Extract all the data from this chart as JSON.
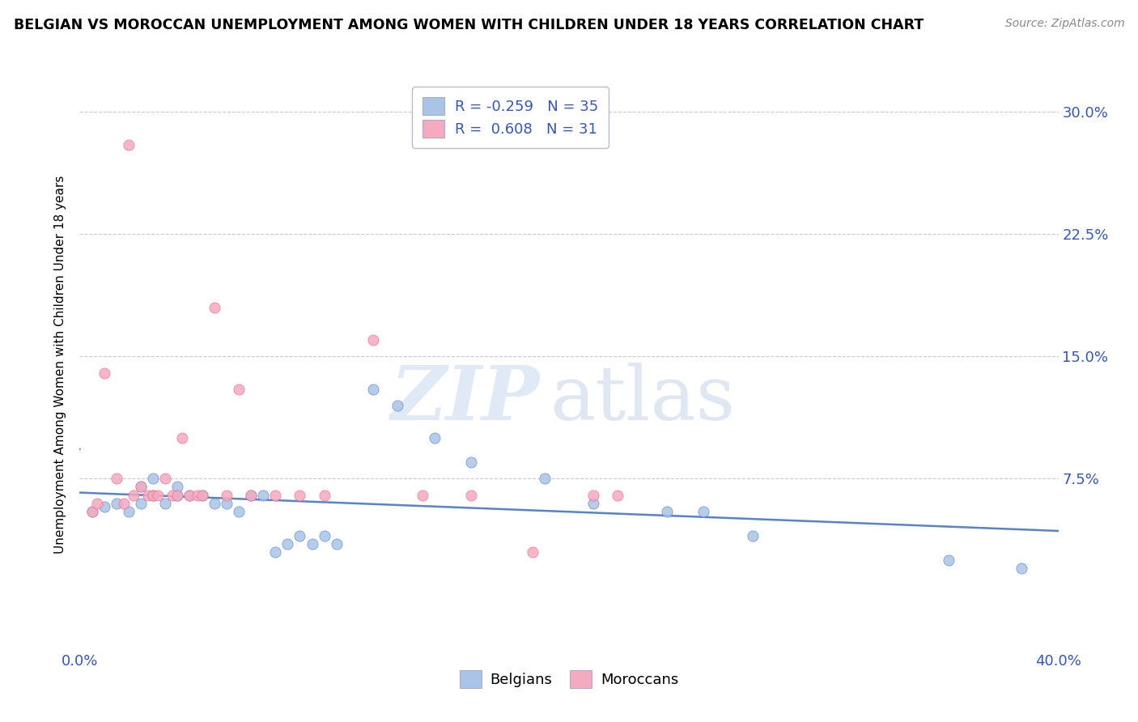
{
  "title": "BELGIAN VS MOROCCAN UNEMPLOYMENT AMONG WOMEN WITH CHILDREN UNDER 18 YEARS CORRELATION CHART",
  "source": "Source: ZipAtlas.com",
  "ylabel": "Unemployment Among Women with Children Under 18 years",
  "xlim": [
    0.0,
    0.4
  ],
  "ylim": [
    -0.03,
    0.32
  ],
  "xticks": [
    0.0,
    0.05,
    0.1,
    0.15,
    0.2,
    0.25,
    0.3,
    0.35,
    0.4
  ],
  "ytick_positions": [
    0.075,
    0.15,
    0.225,
    0.3
  ],
  "ytick_labels": [
    "7.5%",
    "15.0%",
    "22.5%",
    "30.0%"
  ],
  "belgian_color": "#aac4e8",
  "moroccan_color": "#f5aabf",
  "belgian_line_color": "#5585c8",
  "moroccan_line_color": "#f06888",
  "legend_text_color": "#3355cc",
  "title_fontsize": 12.5,
  "source_fontsize": 10,
  "R_belgian": -0.259,
  "N_belgian": 35,
  "R_moroccan": 0.608,
  "N_moroccan": 31,
  "belgian_x": [
    0.005,
    0.01,
    0.015,
    0.02,
    0.025,
    0.025,
    0.03,
    0.03,
    0.035,
    0.04,
    0.04,
    0.045,
    0.05,
    0.055,
    0.06,
    0.065,
    0.07,
    0.075,
    0.08,
    0.085,
    0.09,
    0.095,
    0.1,
    0.105,
    0.12,
    0.13,
    0.145,
    0.16,
    0.19,
    0.21,
    0.24,
    0.255,
    0.275,
    0.355,
    0.385
  ],
  "belgian_y": [
    0.055,
    0.058,
    0.06,
    0.055,
    0.06,
    0.07,
    0.065,
    0.075,
    0.06,
    0.065,
    0.07,
    0.065,
    0.065,
    0.06,
    0.06,
    0.055,
    0.065,
    0.065,
    0.03,
    0.035,
    0.04,
    0.035,
    0.04,
    0.035,
    0.13,
    0.12,
    0.1,
    0.085,
    0.075,
    0.06,
    0.055,
    0.055,
    0.04,
    0.025,
    0.02
  ],
  "moroccan_x": [
    0.005,
    0.007,
    0.01,
    0.015,
    0.018,
    0.02,
    0.022,
    0.025,
    0.028,
    0.03,
    0.032,
    0.035,
    0.038,
    0.04,
    0.042,
    0.045,
    0.048,
    0.05,
    0.055,
    0.06,
    0.065,
    0.07,
    0.08,
    0.09,
    0.1,
    0.12,
    0.14,
    0.16,
    0.185,
    0.21,
    0.22
  ],
  "moroccan_y": [
    0.055,
    0.06,
    0.14,
    0.075,
    0.06,
    0.28,
    0.065,
    0.07,
    0.065,
    0.065,
    0.065,
    0.075,
    0.065,
    0.065,
    0.1,
    0.065,
    0.065,
    0.065,
    0.18,
    0.065,
    0.13,
    0.065,
    0.065,
    0.065,
    0.065,
    0.16,
    0.065,
    0.065,
    0.03,
    0.065,
    0.065
  ],
  "watermark_zip": "ZIP",
  "watermark_atlas": "atlas",
  "grid_color": "#c8c8d8",
  "background_color": "#ffffff"
}
